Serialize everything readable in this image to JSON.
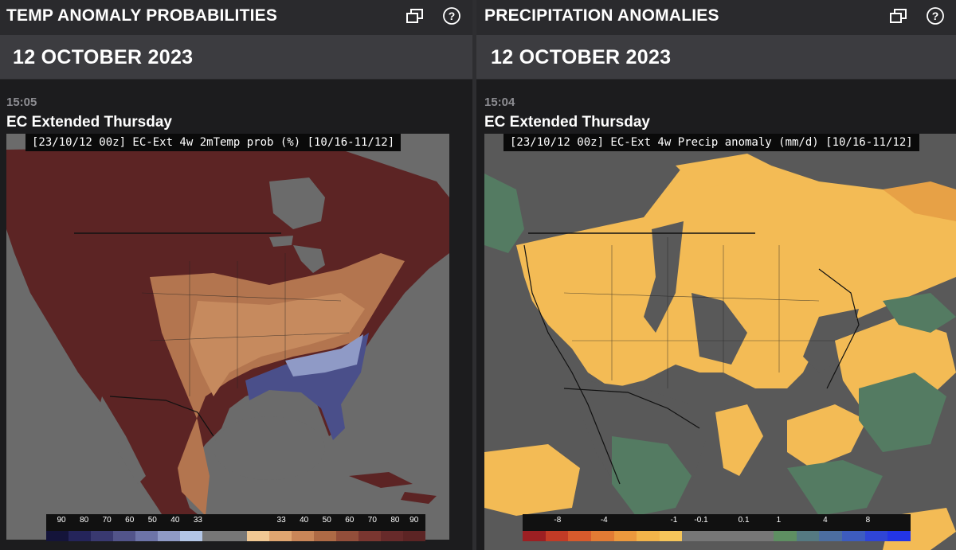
{
  "left_panel": {
    "title": "TEMP ANOMALY PROBABILITIES",
    "date": "12 OCTOBER 2023",
    "time": "15:05",
    "model": "EC Extended Thursday",
    "map_caption": "[23/10/12 00z] EC-Ext 4w 2mTemp prob (%) [10/16-11/12]",
    "legend_labels": [
      "90",
      "80",
      "70",
      "60",
      "50",
      "40",
      "33",
      "33",
      "40",
      "50",
      "60",
      "70",
      "80",
      "90"
    ],
    "legend_colors": [
      "#14143a",
      "#24245a",
      "#393970",
      "#52548a",
      "#6d74a8",
      "#8f9ac6",
      "#b3c6e6",
      "#777777",
      "#777777",
      "#f1c893",
      "#e0a670",
      "#c98658",
      "#ae6a45",
      "#934e3a",
      "#7a3630",
      "#672a2a",
      "#5c2424"
    ]
  },
  "right_panel": {
    "title": "PRECIPITATION ANOMALIES",
    "date": "12 OCTOBER 2023",
    "time": "15:04",
    "model": "EC Extended Thursday",
    "map_caption": "[23/10/12 00z] EC-Ext 4w Precip anomaly (mm/d) [10/16-11/12]",
    "legend_labels": [
      "-8",
      "-4",
      "-1",
      "-0.1",
      "0.1",
      "1",
      "4",
      "8"
    ],
    "legend_colors": [
      "#9c1f22",
      "#c23b26",
      "#d75a2c",
      "#e27b34",
      "#ec993d",
      "#f3b44a",
      "#f6c65a",
      "#777777",
      "#777777",
      "#777777",
      "#777777",
      "#5e8f62",
      "#557a82",
      "#4c6ea1",
      "#3d5cbf",
      "#2f45d6",
      "#2335e6"
    ]
  },
  "icons": {
    "expand": "expand-window-icon",
    "help": "help-circle-icon"
  },
  "map_colors": {
    "ocean": "#6b6b6b",
    "temp_high": "#5c2424",
    "temp_warm": "#a8694a",
    "temp_cold": "#4a4f8a",
    "precip_dry": "#f3bb55",
    "precip_neutral": "#595959",
    "precip_wet": "#547b62"
  }
}
